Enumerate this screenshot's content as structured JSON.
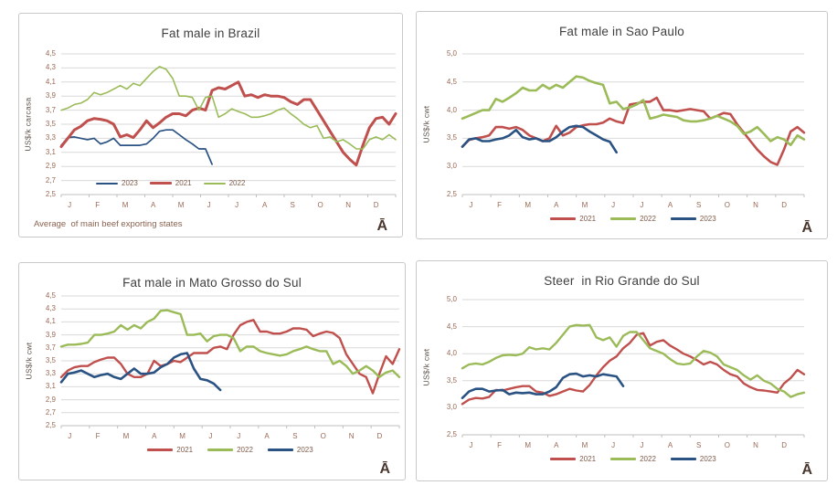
{
  "page": {
    "background": "#ffffff"
  },
  "colors": {
    "red": "#C0504D",
    "green": "#9BBB59",
    "blue": "#2A5283",
    "grid": "#D9D9D9",
    "axis": "#BFBFBF",
    "tick_text": "#9A6A56",
    "legend_text": "#7E5B4A",
    "title_text": "#404040",
    "ylabel_text": "#5C5049",
    "footnote_text": "#8A6350",
    "logo_text": "#4A372E",
    "border": "#C9C9C9"
  },
  "chart_data": [
    {
      "type": "line",
      "title": "Fat male in Brazil",
      "ylabel": "US$/k carcasa",
      "x_unit": "weeks of the year",
      "x_tick_labels": [
        "J",
        "F",
        "M",
        "A",
        "M",
        "J",
        "J",
        "A",
        "S",
        "O",
        "N",
        "D"
      ],
      "yticks": [
        "4,5",
        "4,3",
        "4,1",
        "3,9",
        "3,7",
        "3,5",
        "3,3",
        "3,1",
        "2,9",
        "2,7",
        "2,5"
      ],
      "ylim": [
        2.5,
        4.5
      ],
      "grid": true,
      "legend_position": "inside-bottom-left",
      "footnote": "Average  of main beef exporting states",
      "logo": "Ā",
      "series": [
        {
          "name": "2023",
          "color_key": "blue",
          "values": [
            3.2,
            3.31,
            3.32,
            3.3,
            3.28,
            3.3,
            3.22,
            3.25,
            3.3,
            3.2,
            3.2,
            3.2,
            3.2,
            3.22,
            3.3,
            3.4,
            3.42,
            3.42,
            3.35,
            3.28,
            3.22,
            3.15,
            3.15,
            2.93
          ]
        },
        {
          "name": "2021",
          "color_key": "red",
          "values": [
            3.18,
            3.3,
            3.42,
            3.47,
            3.55,
            3.58,
            3.57,
            3.55,
            3.5,
            3.32,
            3.35,
            3.31,
            3.42,
            3.55,
            3.45,
            3.52,
            3.6,
            3.65,
            3.65,
            3.62,
            3.7,
            3.73,
            3.7,
            3.98,
            4.02,
            4.0,
            4.05,
            4.1,
            3.9,
            3.92,
            3.88,
            3.92,
            3.9,
            3.9,
            3.88,
            3.82,
            3.78,
            3.85,
            3.85,
            3.7,
            3.55,
            3.4,
            3.25,
            3.1,
            3.0,
            2.92,
            3.2,
            3.45,
            3.58,
            3.6,
            3.5,
            3.65
          ]
        },
        {
          "name": "2022",
          "color_key": "green",
          "values": [
            3.7,
            3.73,
            3.78,
            3.8,
            3.85,
            3.95,
            3.92,
            3.95,
            4.0,
            4.05,
            4.0,
            4.08,
            4.05,
            4.15,
            4.25,
            4.32,
            4.28,
            4.15,
            3.9,
            3.9,
            3.88,
            3.7,
            3.88,
            3.9,
            3.6,
            3.65,
            3.72,
            3.68,
            3.65,
            3.6,
            3.6,
            3.62,
            3.65,
            3.7,
            3.73,
            3.65,
            3.58,
            3.5,
            3.45,
            3.48,
            3.3,
            3.32,
            3.25,
            3.28,
            3.22,
            3.15,
            3.15,
            3.28,
            3.32,
            3.28,
            3.35,
            3.28
          ]
        }
      ]
    },
    {
      "type": "line",
      "title": "Fat male in Sao Paulo",
      "ylabel": "US$/k cwt",
      "x_unit": "weeks of the year",
      "x_tick_labels": [
        "J",
        "F",
        "M",
        "A",
        "M",
        "J",
        "J",
        "A",
        "S",
        "O",
        "N",
        "D"
      ],
      "yticks": [
        "5,0",
        "4,5",
        "4,0",
        "3,5",
        "3,0",
        "2,5"
      ],
      "ylim": [
        2.5,
        5.0
      ],
      "grid": true,
      "legend_position": "below-center",
      "footnote": "",
      "logo": "Ā",
      "series": [
        {
          "name": "2021",
          "color_key": "red",
          "values": [
            3.35,
            3.47,
            3.5,
            3.52,
            3.55,
            3.7,
            3.7,
            3.67,
            3.7,
            3.65,
            3.55,
            3.5,
            3.45,
            3.5,
            3.72,
            3.55,
            3.6,
            3.7,
            3.73,
            3.75,
            3.75,
            3.78,
            3.85,
            3.8,
            3.77,
            4.1,
            4.12,
            4.15,
            4.15,
            4.22,
            4.0,
            4.0,
            3.98,
            4.0,
            4.02,
            4.0,
            3.98,
            3.85,
            3.9,
            3.95,
            3.93,
            3.75,
            3.6,
            3.45,
            3.3,
            3.18,
            3.08,
            3.03,
            3.3,
            3.62,
            3.7,
            3.6
          ]
        },
        {
          "name": "2022",
          "color_key": "green",
          "values": [
            3.85,
            3.9,
            3.95,
            4.0,
            4.0,
            4.2,
            4.15,
            4.22,
            4.3,
            4.4,
            4.35,
            4.35,
            4.45,
            4.38,
            4.45,
            4.4,
            4.5,
            4.6,
            4.58,
            4.52,
            4.48,
            4.45,
            4.12,
            4.15,
            4.02,
            4.05,
            4.1,
            4.18,
            3.85,
            3.88,
            3.92,
            3.9,
            3.88,
            3.82,
            3.8,
            3.8,
            3.82,
            3.85,
            3.9,
            3.85,
            3.8,
            3.72,
            3.58,
            3.62,
            3.7,
            3.58,
            3.45,
            3.52,
            3.48,
            3.38,
            3.55,
            3.48
          ]
        },
        {
          "name": "2023",
          "color_key": "blue",
          "values": [
            3.35,
            3.48,
            3.5,
            3.45,
            3.45,
            3.48,
            3.5,
            3.55,
            3.65,
            3.52,
            3.48,
            3.5,
            3.45,
            3.45,
            3.52,
            3.62,
            3.7,
            3.72,
            3.7,
            3.62,
            3.55,
            3.48,
            3.44,
            3.25
          ]
        }
      ]
    },
    {
      "type": "line",
      "title": "Fat male in Mato Grosso do Sul",
      "ylabel": "US$/k cwt",
      "x_unit": "weeks of the year",
      "x_tick_labels": [
        "J",
        "F",
        "M",
        "A",
        "M",
        "J",
        "J",
        "A",
        "S",
        "O",
        "N",
        "D"
      ],
      "yticks": [
        "4,5",
        "4,3",
        "4,1",
        "3,9",
        "3,7",
        "3,5",
        "3,3",
        "3,1",
        "2,9",
        "2,7",
        "2,5"
      ],
      "ylim": [
        2.5,
        4.5
      ],
      "grid": true,
      "legend_position": "below-center",
      "footnote": "",
      "logo": "Ā",
      "series": [
        {
          "name": "2021",
          "color_key": "red",
          "values": [
            3.25,
            3.35,
            3.4,
            3.42,
            3.42,
            3.48,
            3.52,
            3.55,
            3.55,
            3.45,
            3.3,
            3.25,
            3.25,
            3.3,
            3.5,
            3.42,
            3.45,
            3.5,
            3.48,
            3.55,
            3.62,
            3.62,
            3.62,
            3.7,
            3.72,
            3.68,
            3.9,
            4.05,
            4.1,
            4.13,
            3.95,
            3.95,
            3.92,
            3.92,
            3.95,
            4.0,
            4.0,
            3.98,
            3.88,
            3.92,
            3.95,
            3.93,
            3.85,
            3.6,
            3.45,
            3.3,
            3.25,
            3.0,
            3.3,
            3.57,
            3.45,
            3.68
          ]
        },
        {
          "name": "2022",
          "color_key": "green",
          "values": [
            3.72,
            3.75,
            3.75,
            3.76,
            3.78,
            3.9,
            3.9,
            3.92,
            3.95,
            4.05,
            3.98,
            4.05,
            4.0,
            4.1,
            4.15,
            4.27,
            4.28,
            4.25,
            4.22,
            3.9,
            3.9,
            3.92,
            3.8,
            3.88,
            3.9,
            3.9,
            3.85,
            3.65,
            3.72,
            3.72,
            3.65,
            3.62,
            3.6,
            3.58,
            3.6,
            3.65,
            3.68,
            3.72,
            3.68,
            3.65,
            3.65,
            3.45,
            3.5,
            3.42,
            3.3,
            3.35,
            3.42,
            3.35,
            3.25,
            3.32,
            3.35,
            3.25
          ]
        },
        {
          "name": "2023",
          "color_key": "blue",
          "values": [
            3.17,
            3.3,
            3.32,
            3.35,
            3.3,
            3.25,
            3.28,
            3.3,
            3.25,
            3.22,
            3.3,
            3.38,
            3.3,
            3.3,
            3.32,
            3.4,
            3.45,
            3.55,
            3.6,
            3.62,
            3.38,
            3.22,
            3.2,
            3.15,
            3.05
          ]
        }
      ]
    },
    {
      "type": "line",
      "title": "Steer  in Rio Grande do Sul",
      "ylabel": "US$/k cwt",
      "x_unit": "weeks of the year",
      "x_tick_labels": [
        "J",
        "F",
        "M",
        "A",
        "M",
        "J",
        "J",
        "A",
        "S",
        "O",
        "N",
        "D"
      ],
      "yticks": [
        "5,0",
        "4,5",
        "4,0",
        "3,5",
        "3,0",
        "2,5"
      ],
      "ylim": [
        2.5,
        5.0
      ],
      "grid": true,
      "legend_position": "below-center",
      "footnote": "",
      "logo": "Ā",
      "series": [
        {
          "name": "2021",
          "color_key": "red",
          "values": [
            3.07,
            3.15,
            3.18,
            3.17,
            3.2,
            3.33,
            3.32,
            3.35,
            3.38,
            3.4,
            3.4,
            3.3,
            3.28,
            3.22,
            3.25,
            3.3,
            3.35,
            3.32,
            3.3,
            3.42,
            3.6,
            3.75,
            3.87,
            3.95,
            4.1,
            4.2,
            4.35,
            4.38,
            4.15,
            4.22,
            4.25,
            4.15,
            4.08,
            4.0,
            3.95,
            3.88,
            3.8,
            3.85,
            3.8,
            3.7,
            3.62,
            3.58,
            3.45,
            3.38,
            3.33,
            3.32,
            3.3,
            3.28,
            3.45,
            3.55,
            3.7,
            3.62
          ]
        },
        {
          "name": "2022",
          "color_key": "green",
          "values": [
            3.73,
            3.8,
            3.82,
            3.8,
            3.85,
            3.92,
            3.97,
            3.98,
            3.97,
            4.0,
            4.12,
            4.08,
            4.1,
            4.08,
            4.2,
            4.35,
            4.5,
            4.53,
            4.52,
            4.53,
            4.3,
            4.25,
            4.3,
            4.13,
            4.33,
            4.4,
            4.4,
            4.25,
            4.1,
            4.05,
            4.0,
            3.9,
            3.82,
            3.8,
            3.82,
            3.95,
            4.05,
            4.02,
            3.95,
            3.8,
            3.75,
            3.7,
            3.6,
            3.52,
            3.6,
            3.5,
            3.45,
            3.35,
            3.3,
            3.2,
            3.25,
            3.28
          ]
        },
        {
          "name": "2023",
          "color_key": "blue",
          "values": [
            3.18,
            3.3,
            3.35,
            3.35,
            3.3,
            3.32,
            3.33,
            3.25,
            3.28,
            3.27,
            3.28,
            3.25,
            3.25,
            3.3,
            3.38,
            3.55,
            3.62,
            3.63,
            3.58,
            3.6,
            3.58,
            3.62,
            3.6,
            3.58,
            3.4
          ]
        }
      ]
    }
  ]
}
